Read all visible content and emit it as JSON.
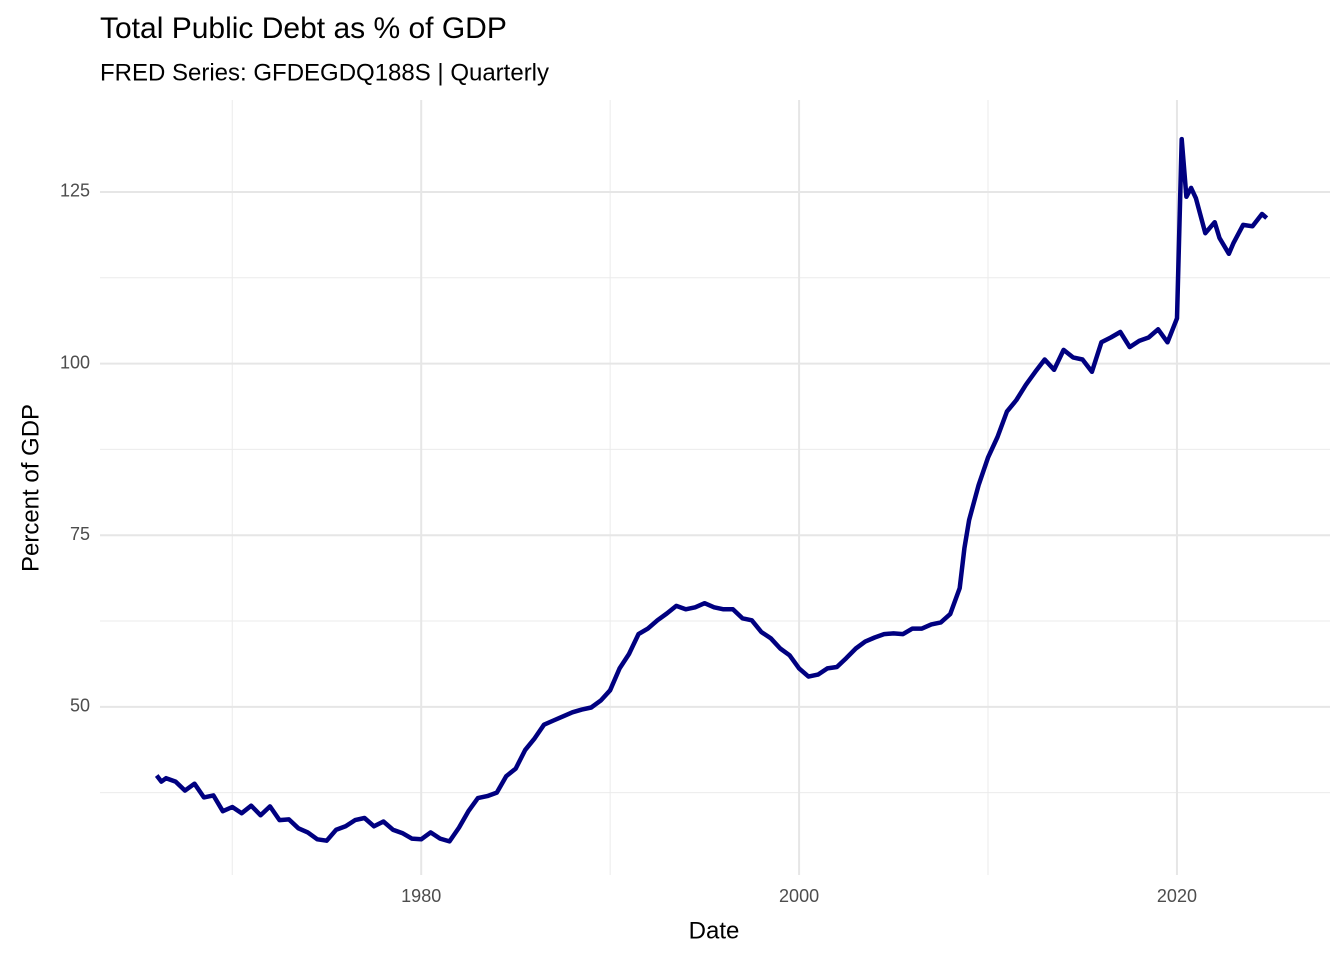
{
  "chart_data": {
    "type": "line",
    "title": "Total Public Debt as % of GDP",
    "subtitle": "FRED Series: GFDEGDQ188S | Quarterly",
    "x_label": "Date",
    "y_label": "Percent of GDP",
    "xlim": [
      1963,
      2028.1
    ],
    "xticks": [
      1980,
      2000,
      2020
    ],
    "x_minor_ticks": [
      1970,
      1990,
      2010
    ],
    "ylim": [
      25.5,
      138.4
    ],
    "yticks": [
      50,
      75,
      100,
      125
    ],
    "y_minor_ticks": [
      37.5,
      62.5,
      87.5,
      112.5
    ],
    "grid": true,
    "x": [
      1966.0,
      1966.25,
      1966.5,
      1967.0,
      1967.5,
      1968.0,
      1968.5,
      1969.0,
      1969.5,
      1970.0,
      1970.5,
      1971.0,
      1971.5,
      1972.0,
      1972.5,
      1973.0,
      1973.5,
      1974.0,
      1974.5,
      1975.0,
      1975.5,
      1976.0,
      1976.5,
      1977.0,
      1977.5,
      1978.0,
      1978.5,
      1979.0,
      1979.5,
      1980.0,
      1980.5,
      1981.0,
      1981.5,
      1982.0,
      1982.5,
      1983.0,
      1983.5,
      1984.0,
      1984.5,
      1985.0,
      1985.5,
      1986.0,
      1986.5,
      1987.0,
      1987.5,
      1988.0,
      1988.5,
      1989.0,
      1989.5,
      1990.0,
      1990.5,
      1991.0,
      1991.5,
      1992.0,
      1992.5,
      1993.0,
      1993.5,
      1994.0,
      1994.5,
      1995.0,
      1995.5,
      1996.0,
      1996.5,
      1997.0,
      1997.5,
      1998.0,
      1998.5,
      1999.0,
      1999.5,
      2000.0,
      2000.5,
      2001.0,
      2001.5,
      2002.0,
      2002.5,
      2003.0,
      2003.5,
      2004.0,
      2004.5,
      2005.0,
      2005.5,
      2006.0,
      2006.5,
      2007.0,
      2007.5,
      2008.0,
      2008.5,
      2008.75,
      2009.0,
      2009.5,
      2010.0,
      2010.5,
      2011.0,
      2011.5,
      2012.0,
      2012.5,
      2013.0,
      2013.5,
      2014.0,
      2014.5,
      2015.0,
      2015.5,
      2016.0,
      2016.5,
      2017.0,
      2017.5,
      2018.0,
      2018.5,
      2019.0,
      2019.5,
      2020.0,
      2020.25,
      2020.5,
      2020.75,
      2021.0,
      2021.5,
      2022.0,
      2022.25,
      2022.75,
      2023.0,
      2023.5,
      2024.0,
      2024.5,
      2024.75
    ],
    "series": [
      {
        "name": "Percent of GDP",
        "color": "#000080",
        "values": [
          40.0,
          39.1,
          39.6,
          39.1,
          37.8,
          38.8,
          36.8,
          37.1,
          34.8,
          35.4,
          34.5,
          35.6,
          34.2,
          35.5,
          33.5,
          33.6,
          32.3,
          31.7,
          30.7,
          30.5,
          32.1,
          32.6,
          33.5,
          33.8,
          32.6,
          33.3,
          32.1,
          31.6,
          30.8,
          30.7,
          31.7,
          30.8,
          30.4,
          32.4,
          34.8,
          36.7,
          37.0,
          37.5,
          39.9,
          41.0,
          43.7,
          45.4,
          47.4,
          48.0,
          48.6,
          49.2,
          49.6,
          49.9,
          50.9,
          52.4,
          55.6,
          57.7,
          60.6,
          61.4,
          62.6,
          63.6,
          64.7,
          64.2,
          64.5,
          65.1,
          64.5,
          64.2,
          64.2,
          62.9,
          62.6,
          60.9,
          60.0,
          58.5,
          57.5,
          55.6,
          54.4,
          54.7,
          55.6,
          55.8,
          57.1,
          58.5,
          59.5,
          60.1,
          60.6,
          60.7,
          60.6,
          61.4,
          61.4,
          62.0,
          62.3,
          63.5,
          67.3,
          73.1,
          77.2,
          82.3,
          86.3,
          89.3,
          93.0,
          94.7,
          96.9,
          98.8,
          100.6,
          99.1,
          102.0,
          100.9,
          100.6,
          98.8,
          103.1,
          103.8,
          104.6,
          102.4,
          103.3,
          103.8,
          105.0,
          103.1,
          106.6,
          132.7,
          124.3,
          125.6,
          124.1,
          119.0,
          120.6,
          118.3,
          116.0,
          117.6,
          120.2,
          120.0,
          121.8,
          121.2
        ]
      }
    ]
  }
}
